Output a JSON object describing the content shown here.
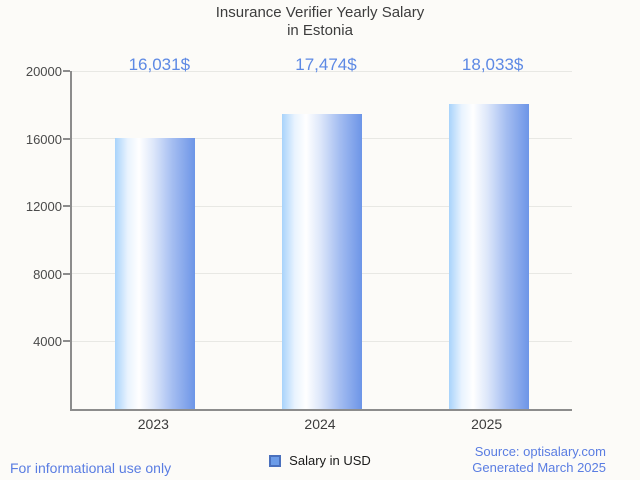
{
  "chart_data": {
    "type": "bar",
    "title": "Insurance Verifier Yearly Salary in Estonia",
    "title_lines": [
      "Insurance Verifier Yearly Salary",
      "in Estonia"
    ],
    "categories": [
      "2023",
      "2024",
      "2025"
    ],
    "series": [
      {
        "name": "Salary in USD",
        "values": [
          16031,
          17474,
          18033
        ],
        "value_labels": [
          "16,031$",
          "17,474$",
          "18,033$"
        ]
      }
    ],
    "xlabel": "",
    "ylabel": "",
    "ylim": [
      0,
      20000
    ],
    "yticks": [
      4000,
      8000,
      12000,
      16000,
      20000
    ],
    "grid": "horizontal",
    "legend_position": "bottom"
  },
  "legend": {
    "swatch_icon": "legend-square-swatch",
    "label": "Salary in USD",
    "swatch_fill": "#6c9ce8",
    "swatch_border": "#4a70bd"
  },
  "footer": {
    "disclaimer": "For informational use only",
    "source": "Source: optisalary.com",
    "generated": "Generated March 2025"
  },
  "colors": {
    "background": "#fcfbf8",
    "title_text": "#3d3d3d",
    "value_label_text": "#5d89e4",
    "footer_text": "#5a7de2",
    "axis_line": "#8c8c8c",
    "gridline": "#e8e8e4",
    "tick_text": "#4a4a4a",
    "bar_gradient_left": "#a8d3fb",
    "bar_gradient_mid": "#ffffff",
    "bar_gradient_right": "#6d95e7"
  }
}
